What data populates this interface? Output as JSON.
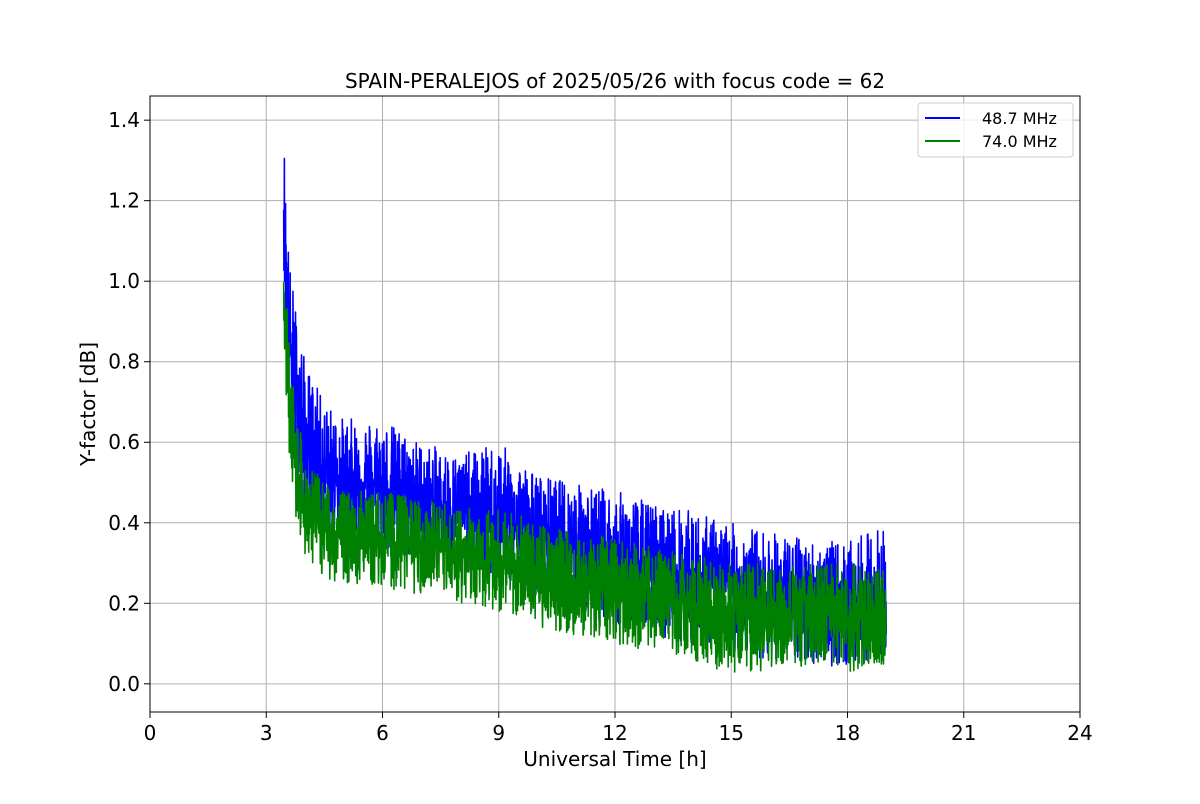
{
  "chart_data": {
    "type": "line",
    "title": "SPAIN-PERALEJOS of 2025/05/26 with focus code = 62",
    "xlabel": "Universal Time [h]",
    "ylabel": "Y-factor [dB]",
    "xlim": [
      0,
      24
    ],
    "ylim": [
      -0.07,
      1.46
    ],
    "x_ticks": [
      0,
      3,
      6,
      9,
      12,
      15,
      18,
      21,
      24
    ],
    "y_ticks": [
      0.0,
      0.2,
      0.4,
      0.6,
      0.8,
      1.0,
      1.2,
      1.4
    ],
    "grid": true,
    "legend_position": "top-right",
    "series": [
      {
        "name": "48.7 MHz",
        "color": "#0000ff",
        "x": [
          3.45,
          3.5,
          3.6,
          3.75,
          4.0,
          4.5,
          5.0,
          6.0,
          7.0,
          8.0,
          9.0,
          10.0,
          11.0,
          12.0,
          13.0,
          14.0,
          15.0,
          16.0,
          17.0,
          18.0,
          19.0
        ],
        "y_upper": [
          1.39,
          1.25,
          1.05,
          0.95,
          0.8,
          0.7,
          0.66,
          0.66,
          0.6,
          0.57,
          0.6,
          0.52,
          0.5,
          0.48,
          0.45,
          0.43,
          0.4,
          0.38,
          0.36,
          0.35,
          0.4
        ],
        "y_lower": [
          1.05,
          0.85,
          0.68,
          0.55,
          0.42,
          0.38,
          0.38,
          0.33,
          0.3,
          0.28,
          0.26,
          0.22,
          0.18,
          0.15,
          0.12,
          0.1,
          0.08,
          0.06,
          0.05,
          0.04,
          0.08
        ],
        "y_mid": [
          1.2,
          1.05,
          0.85,
          0.72,
          0.6,
          0.54,
          0.51,
          0.49,
          0.46,
          0.43,
          0.41,
          0.37,
          0.34,
          0.31,
          0.28,
          0.26,
          0.24,
          0.22,
          0.2,
          0.19,
          0.18
        ]
      },
      {
        "name": "74.0 MHz",
        "color": "#008000",
        "x": [
          3.45,
          3.5,
          3.6,
          3.75,
          4.0,
          4.5,
          5.0,
          6.0,
          7.0,
          8.0,
          9.0,
          10.0,
          11.0,
          12.0,
          13.0,
          14.0,
          15.0,
          16.0,
          17.0,
          18.0,
          19.0
        ],
        "y_upper": [
          1.14,
          1.0,
          0.85,
          0.7,
          0.56,
          0.5,
          0.48,
          0.48,
          0.46,
          0.44,
          0.44,
          0.4,
          0.38,
          0.36,
          0.34,
          0.32,
          0.3,
          0.3,
          0.3,
          0.3,
          0.29
        ],
        "y_lower": [
          0.9,
          0.72,
          0.55,
          0.42,
          0.32,
          0.26,
          0.25,
          0.24,
          0.22,
          0.2,
          0.18,
          0.14,
          0.12,
          0.1,
          0.08,
          0.06,
          0.02,
          0.03,
          0.03,
          0.02,
          0.05
        ],
        "y_mid": [
          1.0,
          0.85,
          0.7,
          0.56,
          0.44,
          0.38,
          0.36,
          0.35,
          0.34,
          0.32,
          0.3,
          0.27,
          0.25,
          0.23,
          0.21,
          0.19,
          0.18,
          0.17,
          0.16,
          0.16,
          0.16
        ]
      }
    ]
  }
}
